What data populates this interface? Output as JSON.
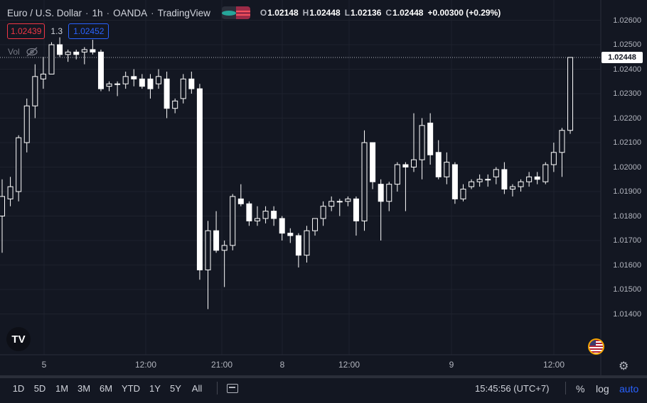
{
  "legend": {
    "symbol_name": "Euro / U.S. Dollar",
    "interval": "1h",
    "exchange": "OANDA",
    "provider": "TradingView",
    "open_label": "O",
    "open": "1.02148",
    "high_label": "H",
    "high": "1.02448",
    "low_label": "L",
    "low": "1.02136",
    "close_label": "C",
    "close": "1.02448",
    "change": "+0.00300 (+0.29%)"
  },
  "quote": {
    "bid": "1.02439",
    "spread": "1.3",
    "ask": "1.02452"
  },
  "volume": {
    "label": "Vol",
    "icon": "eye-crossed-icon"
  },
  "price_axis": {
    "min": 1.0132,
    "max": 1.0263,
    "labels": [
      "1.02600",
      "1.02500",
      "1.02400",
      "1.02300",
      "1.02200",
      "1.02100",
      "1.02000",
      "1.01900",
      "1.01800",
      "1.01700",
      "1.01600",
      "1.01500",
      "1.01400"
    ],
    "last_price": "1.02448"
  },
  "time_axis": {
    "labels": [
      "5",
      "12:00",
      "21:00",
      "8",
      "12:00",
      "9",
      "12:00"
    ]
  },
  "chart_data": {
    "type": "candlestick",
    "candles": [
      {
        "o": 1.018,
        "h": 1.0195,
        "l": 1.0165,
        "c": 1.0188
      },
      {
        "o": 1.0187,
        "h": 1.0196,
        "l": 1.0184,
        "c": 1.0192
      },
      {
        "o": 1.019,
        "h": 1.0213,
        "l": 1.0186,
        "c": 1.0212
      },
      {
        "o": 1.021,
        "h": 1.0228,
        "l": 1.0206,
        "c": 1.0225
      },
      {
        "o": 1.0225,
        "h": 1.0242,
        "l": 1.022,
        "c": 1.0237
      },
      {
        "o": 1.0236,
        "h": 1.0245,
        "l": 1.0232,
        "c": 1.0238
      },
      {
        "o": 1.0238,
        "h": 1.0251,
        "l": 1.0238,
        "c": 1.025
      },
      {
        "o": 1.025,
        "h": 1.0253,
        "l": 1.0245,
        "c": 1.0246
      },
      {
        "o": 1.0246,
        "h": 1.0248,
        "l": 1.0243,
        "c": 1.0247
      },
      {
        "o": 1.0247,
        "h": 1.0248,
        "l": 1.0244,
        "c": 1.0246
      },
      {
        "o": 1.0247,
        "h": 1.0249,
        "l": 1.0242,
        "c": 1.0248
      },
      {
        "o": 1.0248,
        "h": 1.0252,
        "l": 1.0246,
        "c": 1.0247
      },
      {
        "o": 1.0247,
        "h": 1.0248,
        "l": 1.0231,
        "c": 1.0232
      },
      {
        "o": 1.0233,
        "h": 1.0235,
        "l": 1.0231,
        "c": 1.0234
      },
      {
        "o": 1.0234,
        "h": 1.0235,
        "l": 1.0229,
        "c": 1.0234
      },
      {
        "o": 1.0234,
        "h": 1.0239,
        "l": 1.0232,
        "c": 1.0237
      },
      {
        "o": 1.0237,
        "h": 1.024,
        "l": 1.0233,
        "c": 1.0236
      },
      {
        "o": 1.0236,
        "h": 1.0238,
        "l": 1.0232,
        "c": 1.0233
      },
      {
        "o": 1.0236,
        "h": 1.0238,
        "l": 1.0228,
        "c": 1.0232
      },
      {
        "o": 1.0234,
        "h": 1.024,
        "l": 1.0232,
        "c": 1.0237
      },
      {
        "o": 1.0236,
        "h": 1.0239,
        "l": 1.022,
        "c": 1.0224
      },
      {
        "o": 1.0224,
        "h": 1.0228,
        "l": 1.0222,
        "c": 1.0227
      },
      {
        "o": 1.0228,
        "h": 1.0238,
        "l": 1.0226,
        "c": 1.0236
      },
      {
        "o": 1.0236,
        "h": 1.0239,
        "l": 1.023,
        "c": 1.0232
      },
      {
        "o": 1.0232,
        "h": 1.0234,
        "l": 1.0154,
        "c": 1.0158
      },
      {
        "o": 1.0158,
        "h": 1.0178,
        "l": 1.0142,
        "c": 1.0174
      },
      {
        "o": 1.0174,
        "h": 1.0182,
        "l": 1.0165,
        "c": 1.0166
      },
      {
        "o": 1.0166,
        "h": 1.017,
        "l": 1.0151,
        "c": 1.0168
      },
      {
        "o": 1.0168,
        "h": 1.0189,
        "l": 1.0166,
        "c": 1.0188
      },
      {
        "o": 1.0187,
        "h": 1.0193,
        "l": 1.0184,
        "c": 1.0185
      },
      {
        "o": 1.0185,
        "h": 1.0186,
        "l": 1.0176,
        "c": 1.0178
      },
      {
        "o": 1.0178,
        "h": 1.0184,
        "l": 1.0176,
        "c": 1.0179
      },
      {
        "o": 1.0179,
        "h": 1.0184,
        "l": 1.0177,
        "c": 1.0182
      },
      {
        "o": 1.0182,
        "h": 1.0184,
        "l": 1.0176,
        "c": 1.0179
      },
      {
        "o": 1.0179,
        "h": 1.018,
        "l": 1.017,
        "c": 1.0173
      },
      {
        "o": 1.0173,
        "h": 1.0175,
        "l": 1.0169,
        "c": 1.0172
      },
      {
        "o": 1.0172,
        "h": 1.0173,
        "l": 1.0159,
        "c": 1.0164
      },
      {
        "o": 1.0164,
        "h": 1.0176,
        "l": 1.0161,
        "c": 1.0174
      },
      {
        "o": 1.0174,
        "h": 1.0179,
        "l": 1.0172,
        "c": 1.0179
      },
      {
        "o": 1.0179,
        "h": 1.0186,
        "l": 1.0176,
        "c": 1.0184
      },
      {
        "o": 1.0184,
        "h": 1.0188,
        "l": 1.0182,
        "c": 1.0186
      },
      {
        "o": 1.0186,
        "h": 1.0187,
        "l": 1.018,
        "c": 1.0186
      },
      {
        "o": 1.0186,
        "h": 1.0188,
        "l": 1.0184,
        "c": 1.0187
      },
      {
        "o": 1.0187,
        "h": 1.0188,
        "l": 1.0172,
        "c": 1.0178
      },
      {
        "o": 1.0178,
        "h": 1.0215,
        "l": 1.0174,
        "c": 1.021
      },
      {
        "o": 1.021,
        "h": 1.021,
        "l": 1.0191,
        "c": 1.0194
      },
      {
        "o": 1.0193,
        "h": 1.0195,
        "l": 1.017,
        "c": 1.0186
      },
      {
        "o": 1.0186,
        "h": 1.0194,
        "l": 1.0182,
        "c": 1.0193
      },
      {
        "o": 1.0193,
        "h": 1.0202,
        "l": 1.019,
        "c": 1.0201
      },
      {
        "o": 1.0201,
        "h": 1.0202,
        "l": 1.0182,
        "c": 1.02
      },
      {
        "o": 1.02,
        "h": 1.0222,
        "l": 1.0198,
        "c": 1.0203
      },
      {
        "o": 1.0203,
        "h": 1.022,
        "l": 1.0195,
        "c": 1.0217
      },
      {
        "o": 1.0218,
        "h": 1.0222,
        "l": 1.0201,
        "c": 1.0205
      },
      {
        "o": 1.0206,
        "h": 1.0211,
        "l": 1.0195,
        "c": 1.0196
      },
      {
        "o": 1.0196,
        "h": 1.0206,
        "l": 1.0193,
        "c": 1.0202
      },
      {
        "o": 1.0201,
        "h": 1.0202,
        "l": 1.0185,
        "c": 1.0187
      },
      {
        "o": 1.0187,
        "h": 1.0193,
        "l": 1.0186,
        "c": 1.0191
      },
      {
        "o": 1.0192,
        "h": 1.0195,
        "l": 1.0191,
        "c": 1.0194
      },
      {
        "o": 1.0194,
        "h": 1.0197,
        "l": 1.0192,
        "c": 1.0195
      },
      {
        "o": 1.0195,
        "h": 1.0197,
        "l": 1.0192,
        "c": 1.0195
      },
      {
        "o": 1.0196,
        "h": 1.02,
        "l": 1.0193,
        "c": 1.0199
      },
      {
        "o": 1.0199,
        "h": 1.0202,
        "l": 1.0189,
        "c": 1.0191
      },
      {
        "o": 1.0191,
        "h": 1.0193,
        "l": 1.0188,
        "c": 1.0192
      },
      {
        "o": 1.0192,
        "h": 1.0195,
        "l": 1.019,
        "c": 1.0194
      },
      {
        "o": 1.0194,
        "h": 1.0198,
        "l": 1.0192,
        "c": 1.0196
      },
      {
        "o": 1.0196,
        "h": 1.0198,
        "l": 1.0193,
        "c": 1.0195
      },
      {
        "o": 1.0194,
        "h": 1.0202,
        "l": 1.0193,
        "c": 1.0201
      },
      {
        "o": 1.0201,
        "h": 1.021,
        "l": 1.0198,
        "c": 1.0206
      },
      {
        "o": 1.0206,
        "h": 1.0216,
        "l": 1.0196,
        "c": 1.0215
      },
      {
        "o": 1.0215,
        "h": 1.02448,
        "l": 1.02136,
        "c": 1.02448
      }
    ]
  },
  "ranges": [
    "1D",
    "5D",
    "1M",
    "3M",
    "6M",
    "YTD",
    "1Y",
    "5Y",
    "All"
  ],
  "clock": "15:45:56 (UTC+7)",
  "scale_buttons": {
    "percent": "%",
    "log": "log",
    "auto": "auto"
  },
  "logo_text": "TV"
}
